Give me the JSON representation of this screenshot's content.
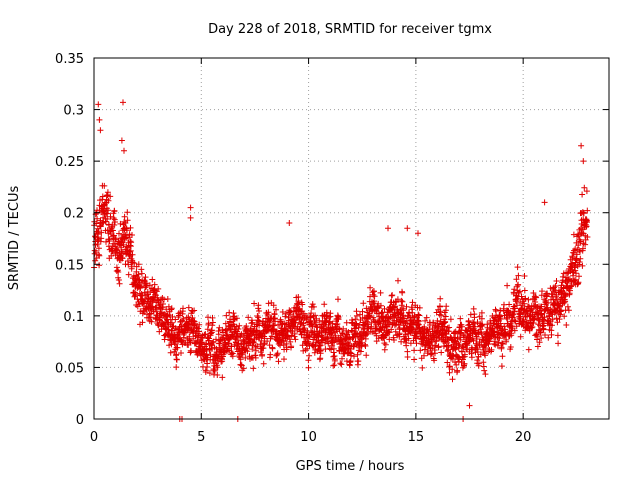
{
  "chart_data": {
    "type": "scatter",
    "title": "Day 228 of 2018, SRMTID for receiver tgmx",
    "xlabel": "GPS time / hours",
    "ylabel": "SRMTID / TECUs",
    "xlim": [
      0,
      24
    ],
    "ylim": [
      0,
      0.35
    ],
    "xticks": [
      "0",
      "5",
      "10",
      "15",
      "20"
    ],
    "yticks": [
      "0",
      "0.05",
      "0.1",
      "0.15",
      "0.2",
      "0.25",
      "0.3",
      "0.35"
    ],
    "grid": true,
    "marker": "+",
    "color": "#e00000",
    "profile": [
      [
        0.0,
        0.17
      ],
      [
        0.5,
        0.2
      ],
      [
        1.0,
        0.17
      ],
      [
        1.5,
        0.17
      ],
      [
        2.0,
        0.14
      ],
      [
        2.5,
        0.12
      ],
      [
        3.0,
        0.1
      ],
      [
        3.5,
        0.095
      ],
      [
        4.0,
        0.09
      ],
      [
        4.5,
        0.09
      ],
      [
        5.0,
        0.085
      ],
      [
        5.5,
        0.075
      ],
      [
        6.0,
        0.065
      ],
      [
        6.5,
        0.07
      ],
      [
        7.0,
        0.08
      ],
      [
        8.0,
        0.09
      ],
      [
        9.0,
        0.095
      ],
      [
        10.0,
        0.09
      ],
      [
        11.0,
        0.09
      ],
      [
        12.0,
        0.085
      ],
      [
        13.0,
        0.09
      ],
      [
        14.0,
        0.1
      ],
      [
        15.0,
        0.09
      ],
      [
        16.0,
        0.08
      ],
      [
        17.0,
        0.075
      ],
      [
        18.0,
        0.085
      ],
      [
        19.0,
        0.095
      ],
      [
        20.0,
        0.095
      ],
      [
        21.0,
        0.1
      ],
      [
        22.0,
        0.13
      ],
      [
        22.5,
        0.16
      ],
      [
        23.0,
        0.19
      ]
    ],
    "spread": [
      [
        0.0,
        0.035
      ],
      [
        1.0,
        0.035
      ],
      [
        2.0,
        0.03
      ],
      [
        3.0,
        0.025
      ],
      [
        5.0,
        0.025
      ],
      [
        8.0,
        0.025
      ],
      [
        12.0,
        0.025
      ],
      [
        16.0,
        0.025
      ],
      [
        20.0,
        0.025
      ],
      [
        22.0,
        0.03
      ],
      [
        23.0,
        0.04
      ]
    ],
    "density_per_hour": 120,
    "outliers": [
      [
        0.2,
        0.305
      ],
      [
        0.25,
        0.29
      ],
      [
        0.3,
        0.28
      ],
      [
        1.35,
        0.307
      ],
      [
        1.3,
        0.27
      ],
      [
        1.4,
        0.26
      ],
      [
        4.5,
        0.205
      ],
      [
        4.5,
        0.195
      ],
      [
        9.1,
        0.19
      ],
      [
        13.7,
        0.185
      ],
      [
        14.6,
        0.185
      ],
      [
        15.1,
        0.18
      ],
      [
        21.0,
        0.21
      ],
      [
        22.7,
        0.265
      ],
      [
        22.8,
        0.25
      ],
      [
        17.5,
        0.013
      ]
    ],
    "zero_points": [
      [
        4.0,
        0.0
      ],
      [
        4.1,
        0.0
      ],
      [
        6.7,
        0.0
      ],
      [
        17.2,
        0.0
      ]
    ]
  }
}
